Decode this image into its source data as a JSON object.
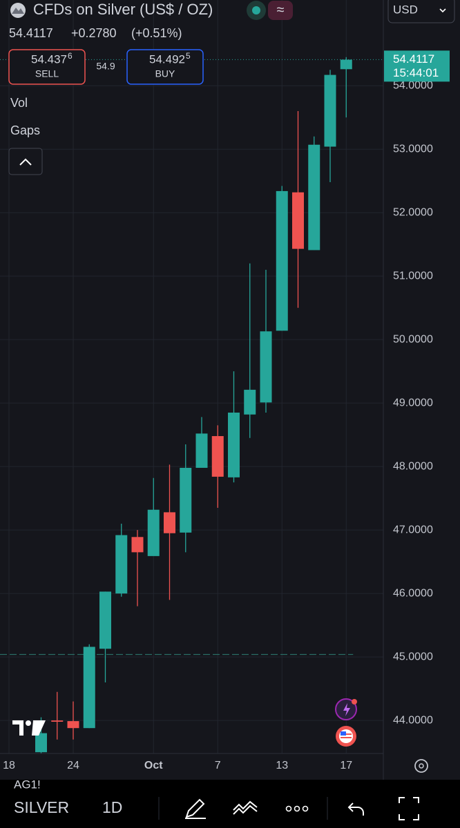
{
  "header": {
    "symbol_title": "CFDs on Silver (US$ / OZ)",
    "currency": "USD",
    "change": "+0.2780",
    "change_pct": "(+0.51%)"
  },
  "trade": {
    "sell_price": "54.437",
    "sell_price_sup": "6",
    "sell_label": "SELL",
    "spread": "54.9",
    "buy_price": "54.492",
    "buy_price_sup": "5",
    "buy_label": "BUY"
  },
  "indicators": [
    "Vol",
    "Gaps"
  ],
  "chart_data": {
    "type": "candlestick",
    "categories": [
      "18",
      null,
      null,
      null,
      "24",
      null,
      null,
      null,
      null,
      "Oct",
      null,
      null,
      null,
      "7",
      null,
      null,
      null,
      "13",
      null,
      null,
      null,
      "17"
    ],
    "series": [
      {
        "up_color": "#26a69a",
        "down_color": "#ef5350",
        "open": [
          null,
          null,
          43.5,
          44.0,
          43.99,
          43.88,
          45.13,
          46.0,
          46.89,
          46.59,
          47.28,
          46.96,
          47.98,
          48.48,
          47.83,
          48.82,
          49.01,
          50.14,
          52.32,
          51.41,
          53.04,
          54.26
        ],
        "high": [
          null,
          null,
          44.05,
          44.45,
          44.3,
          45.2,
          46.03,
          47.1,
          47.0,
          47.82,
          48.03,
          48.35,
          48.78,
          48.65,
          49.5,
          51.2,
          51.1,
          52.42,
          53.6,
          53.2,
          54.25,
          54.45
        ],
        "low": [
          null,
          null,
          43.4,
          43.7,
          43.7,
          43.88,
          44.6,
          45.95,
          45.8,
          46.6,
          45.9,
          46.65,
          47.98,
          47.35,
          47.75,
          48.45,
          48.85,
          50.14,
          50.5,
          51.41,
          52.48,
          53.5
        ],
        "close": [
          null,
          null,
          43.8,
          43.98,
          43.88,
          45.16,
          46.03,
          46.92,
          46.65,
          47.32,
          46.95,
          47.98,
          48.52,
          47.84,
          48.85,
          49.21,
          50.13,
          52.34,
          51.43,
          53.07,
          54.17,
          54.41
        ]
      }
    ],
    "ylim": [
      43.48,
      55.35
    ],
    "yticks": [
      {
        "value": 44,
        "label": "44.0000"
      },
      {
        "value": 45,
        "label": "45.0000"
      },
      {
        "value": 46,
        "label": "46.0000"
      },
      {
        "value": 47,
        "label": "47.0000"
      },
      {
        "value": 48,
        "label": "48.0000"
      },
      {
        "value": 49,
        "label": "49.0000"
      },
      {
        "value": 50,
        "label": "50.0000"
      },
      {
        "value": 51,
        "label": "51.0000"
      },
      {
        "value": 52,
        "label": "52.0000"
      },
      {
        "value": 53,
        "label": "53.0000"
      },
      {
        "value": 54,
        "label": "54.0000"
      }
    ],
    "grid": true,
    "last_price": 54.4117,
    "last_time": "15:44:01",
    "reference_line": 45.04
  },
  "watermark": "AG1!",
  "toolbar": {
    "symbol": "SILVER",
    "interval": "1D"
  }
}
